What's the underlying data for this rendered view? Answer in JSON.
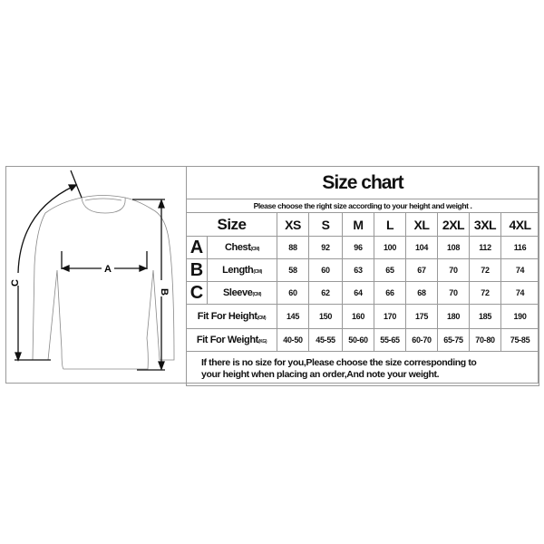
{
  "title": "Size chart",
  "subtitle": "Please choose the right size according to your height and weight .",
  "size_label": "Size",
  "sizes": [
    "XS",
    "S",
    "M",
    "L",
    "XL",
    "2XL",
    "3XL",
    "4XL"
  ],
  "rows": [
    {
      "letter": "A",
      "label": "Chest",
      "unit": "(CM)",
      "values": [
        "88",
        "92",
        "96",
        "100",
        "104",
        "108",
        "112",
        "116"
      ]
    },
    {
      "letter": "B",
      "label": "Length",
      "unit": "(CM)",
      "values": [
        "58",
        "60",
        "63",
        "65",
        "67",
        "70",
        "72",
        "74"
      ]
    },
    {
      "letter": "C",
      "label": "Sleeve",
      "unit": "(CM)",
      "values": [
        "60",
        "62",
        "64",
        "66",
        "68",
        "70",
        "72",
        "74"
      ]
    }
  ],
  "fit_height": {
    "label": "Fit For Height",
    "unit": "(CM)",
    "values": [
      "145",
      "150",
      "160",
      "170",
      "175",
      "180",
      "185",
      "190"
    ]
  },
  "fit_weight": {
    "label": "Fit For Weight",
    "unit": "(KG)",
    "values": [
      "40-50",
      "45-55",
      "50-60",
      "55-65",
      "60-70",
      "65-75",
      "70-80",
      "75-85"
    ]
  },
  "footer": [
    "If there is no size for you,Please choose the size corresponding to",
    "your height when placing an order,And note your weight."
  ],
  "diagram_labels": {
    "a": "A",
    "b": "B",
    "c": "C"
  }
}
